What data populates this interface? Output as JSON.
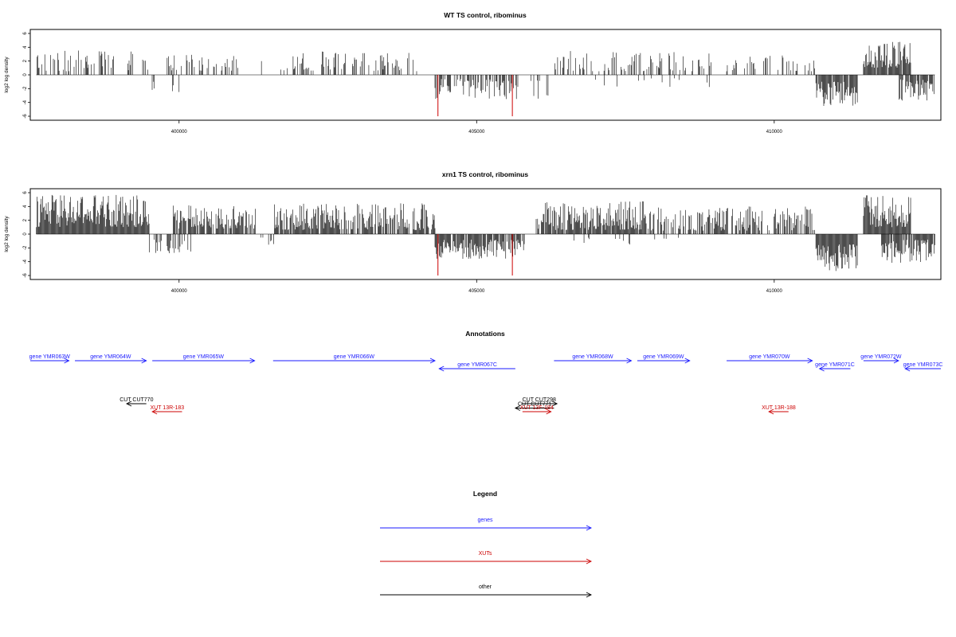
{
  "colors": {
    "black": "#000000",
    "red": "#cc0000",
    "blue": "#1a1aff"
  },
  "chart_data": [
    {
      "type": "bar",
      "title": "WT TS control, ribominus",
      "ylabel": "log2 log density",
      "xlim": [
        397500,
        412800
      ],
      "ylim": [
        -6,
        6
      ],
      "x_ticks": [
        400000,
        405000,
        410000
      ],
      "y_ticks": [
        -6,
        -4,
        -2,
        0,
        2,
        4,
        6
      ],
      "grid": false,
      "segments": [
        {
          "from": 397600,
          "to": 399500,
          "sign": 1,
          "density": 0.35,
          "min": 0.5,
          "max": 3.6
        },
        {
          "from": 399500,
          "to": 399600,
          "sign": -1,
          "density": 0.3,
          "min": 0.8,
          "max": 2.3
        },
        {
          "from": 399800,
          "to": 401000,
          "sign": 1,
          "density": 0.25,
          "min": 0.6,
          "max": 3.0
        },
        {
          "from": 399880,
          "to": 400000,
          "sign": -1,
          "density": 0.3,
          "min": 1.0,
          "max": 2.6
        },
        {
          "from": 401000,
          "to": 401500,
          "sign": 1,
          "density": 0.15,
          "min": 0.5,
          "max": 2.5
        },
        {
          "from": 401700,
          "to": 404000,
          "sign": 1,
          "density": 0.35,
          "min": 0.5,
          "max": 3.4
        },
        {
          "from": 404300,
          "to": 405700,
          "sign": -1,
          "density": 0.55,
          "min": 0.6,
          "max": 3.6
        },
        {
          "from": 405900,
          "to": 406200,
          "sign": -1,
          "density": 0.3,
          "min": 0.6,
          "max": 3.5
        },
        {
          "from": 406300,
          "to": 409000,
          "sign": 1,
          "density": 0.3,
          "min": 0.5,
          "max": 3.5
        },
        {
          "from": 407000,
          "to": 409200,
          "sign": -1,
          "density": 0.05,
          "min": 0.5,
          "max": 1.8
        },
        {
          "from": 409200,
          "to": 410700,
          "sign": 1,
          "density": 0.25,
          "min": 0.5,
          "max": 2.8
        },
        {
          "from": 410700,
          "to": 411400,
          "sign": -1,
          "density": 0.9,
          "min": 1.0,
          "max": 4.5
        },
        {
          "from": 411500,
          "to": 412300,
          "sign": 1,
          "density": 0.9,
          "min": 1.0,
          "max": 5.0
        },
        {
          "from": 412100,
          "to": 412700,
          "sign": -1,
          "density": 0.8,
          "min": 0.6,
          "max": 3.8
        }
      ],
      "red_lines": [
        {
          "x": 404350,
          "value": -6
        },
        {
          "x": 405600,
          "value": -6
        }
      ]
    },
    {
      "type": "bar",
      "title": "xrn1 TS control, ribominus",
      "ylabel": "log2 log density",
      "xlim": [
        397500,
        412800
      ],
      "ylim": [
        -6,
        6
      ],
      "x_ticks": [
        400000,
        405000,
        410000
      ],
      "y_ticks": [
        -6,
        -4,
        -2,
        0,
        2,
        4,
        6
      ],
      "grid": false,
      "segments": [
        {
          "from": 397600,
          "to": 399500,
          "sign": 1,
          "density": 1.0,
          "min": 1.0,
          "max": 5.8
        },
        {
          "from": 399500,
          "to": 400200,
          "sign": -1,
          "density": 0.4,
          "min": 0.8,
          "max": 2.8
        },
        {
          "from": 399900,
          "to": 401300,
          "sign": 1,
          "density": 0.8,
          "min": 0.8,
          "max": 4.2
        },
        {
          "from": 401300,
          "to": 401600,
          "sign": -1,
          "density": 0.2,
          "min": 0.5,
          "max": 2.0
        },
        {
          "from": 401600,
          "to": 404300,
          "sign": 1,
          "density": 0.8,
          "min": 0.6,
          "max": 4.5
        },
        {
          "from": 404300,
          "to": 405800,
          "sign": -1,
          "density": 0.9,
          "min": 0.8,
          "max": 3.6
        },
        {
          "from": 406000,
          "to": 407800,
          "sign": 1,
          "density": 0.9,
          "min": 0.6,
          "max": 4.8
        },
        {
          "from": 406600,
          "to": 408400,
          "sign": -1,
          "density": 0.08,
          "min": 0.5,
          "max": 1.5
        },
        {
          "from": 407800,
          "to": 410700,
          "sign": 1,
          "density": 0.6,
          "min": 0.5,
          "max": 4.0
        },
        {
          "from": 410700,
          "to": 411400,
          "sign": -1,
          "density": 1.0,
          "min": 1.5,
          "max": 5.5
        },
        {
          "from": 411500,
          "to": 412300,
          "sign": 1,
          "density": 1.0,
          "min": 1.0,
          "max": 5.7
        },
        {
          "from": 411800,
          "to": 412700,
          "sign": -1,
          "density": 0.9,
          "min": 0.8,
          "max": 4.2
        }
      ],
      "red_lines": [
        {
          "x": 404350,
          "value": -6
        },
        {
          "x": 405600,
          "value": -6
        }
      ]
    }
  ],
  "annotations": {
    "title": "Annotations",
    "features": [
      {
        "label": "gene YMR063W",
        "start": 397500,
        "end": 398150,
        "strand": "+",
        "row": 0,
        "kind": "genes"
      },
      {
        "label": "gene YMR064W",
        "start": 398250,
        "end": 399450,
        "strand": "+",
        "row": 0,
        "kind": "genes"
      },
      {
        "label": "gene YMR065W",
        "start": 399550,
        "end": 401270,
        "strand": "+",
        "row": 0,
        "kind": "genes"
      },
      {
        "label": "gene YMR066W",
        "start": 401580,
        "end": 404300,
        "strand": "+",
        "row": 0,
        "kind": "genes"
      },
      {
        "label": "gene YMR067C",
        "start": 404370,
        "end": 405650,
        "strand": "-",
        "row": 1,
        "kind": "genes"
      },
      {
        "label": "gene YMR068W",
        "start": 406300,
        "end": 407600,
        "strand": "+",
        "row": 0,
        "kind": "genes"
      },
      {
        "label": "gene YMR069W",
        "start": 407700,
        "end": 408580,
        "strand": "+",
        "row": 0,
        "kind": "genes"
      },
      {
        "label": "gene YMR070W",
        "start": 409200,
        "end": 410640,
        "strand": "+",
        "row": 0,
        "kind": "genes"
      },
      {
        "label": "gene YMR071C",
        "start": 410760,
        "end": 411280,
        "strand": "-",
        "row": 1,
        "kind": "genes"
      },
      {
        "label": "gene YMR072W",
        "start": 411500,
        "end": 412090,
        "strand": "+",
        "row": 0,
        "kind": "genes"
      },
      {
        "label": "gene YMR073C",
        "start": 412200,
        "end": 412800,
        "strand": "-",
        "row": 1,
        "kind": "genes"
      },
      {
        "label": "CUT CUT770",
        "start": 399120,
        "end": 399450,
        "strand": "-",
        "row": 2,
        "kind": "other"
      },
      {
        "label": "XUT 13R-183",
        "start": 399550,
        "end": 400050,
        "strand": "-",
        "row": 3,
        "kind": "XUTs"
      },
      {
        "label": "CUT CUT298",
        "start": 405750,
        "end": 406350,
        "strand": "+",
        "row": 2,
        "kind": "other"
      },
      {
        "label": "CUT CUT771",
        "start": 405650,
        "end": 406300,
        "strand": "-",
        "row": 2.55,
        "kind": "other"
      },
      {
        "label": "XUT 13F-184",
        "start": 405770,
        "end": 406250,
        "strand": "+",
        "row": 3,
        "kind": "XUTs"
      },
      {
        "label": "XUT 13R-188",
        "start": 409910,
        "end": 410240,
        "strand": "-",
        "row": 3,
        "kind": "XUTs"
      }
    ]
  },
  "legend": {
    "title": "Legend",
    "entries": [
      {
        "label": "genes",
        "color": "#1a1aff"
      },
      {
        "label": "XUTs",
        "color": "#cc0000"
      },
      {
        "label": "other",
        "color": "#000000"
      }
    ]
  }
}
